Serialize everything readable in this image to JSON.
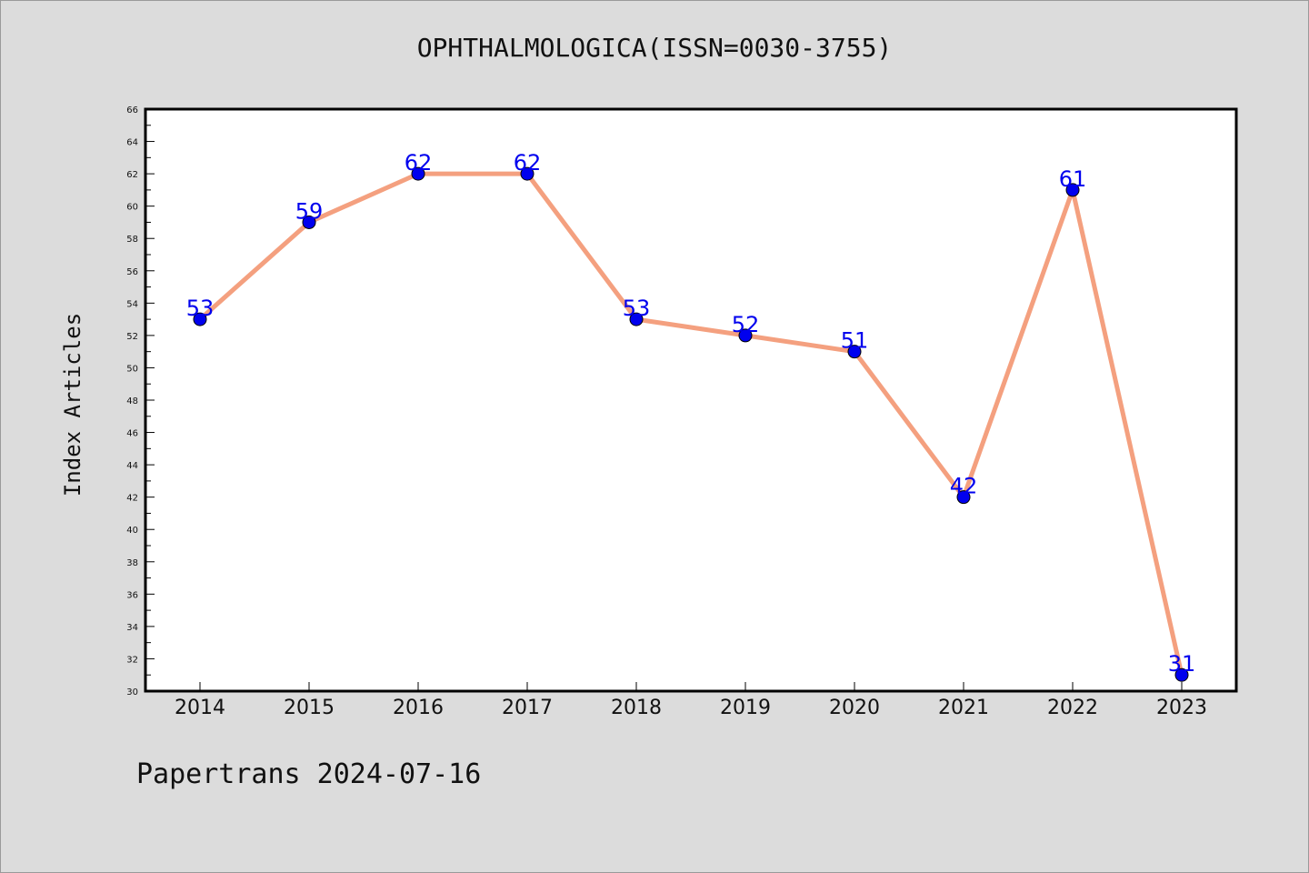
{
  "title": "OPHTHALMOLOGICA(ISSN=0030-3755)",
  "footer": "Papertrans 2024-07-16",
  "colors": {
    "background": "#dcdcdc",
    "plot_area": "#ffffff",
    "line": "#f4a07f",
    "marker": "#0000ee",
    "data_label": "#0000ee"
  },
  "chart_data": {
    "type": "line",
    "categories": [
      "2014",
      "2015",
      "2016",
      "2017",
      "2018",
      "2019",
      "2020",
      "2021",
      "2022",
      "2023"
    ],
    "values": [
      53,
      59,
      62,
      62,
      53,
      52,
      51,
      42,
      61,
      31
    ],
    "data_labels": [
      "53",
      "59",
      "62",
      "62",
      "53",
      "52",
      "51",
      "42",
      "61",
      "31"
    ],
    "ylabel": "Index Articles",
    "xlabel": "",
    "ylim": [
      30,
      66
    ],
    "yticks": [
      30,
      32,
      34,
      36,
      38,
      40,
      42,
      44,
      46,
      48,
      50,
      52,
      54,
      56,
      58,
      60,
      62,
      64,
      66
    ],
    "grid": false,
    "legend": "none"
  }
}
